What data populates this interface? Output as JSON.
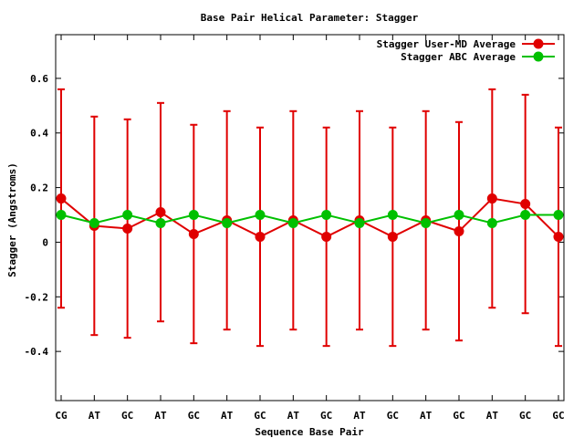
{
  "chart_data": {
    "type": "line",
    "title": "Base Pair Helical Parameter: Stagger",
    "xlabel": "Sequence Base Pair",
    "ylabel": "Stagger (Angstroms)",
    "categories": [
      "CG",
      "AT",
      "GC",
      "AT",
      "GC",
      "AT",
      "GC",
      "AT",
      "GC",
      "AT",
      "GC",
      "AT",
      "GC",
      "AT",
      "GC",
      "GC"
    ],
    "ylim": [
      -0.58,
      0.76
    ],
    "yticks": [
      -0.4,
      -0.2,
      0,
      0.2,
      0.4,
      0.6
    ],
    "ytick_labels": [
      "-0.4",
      "-0.2",
      "0",
      "0.2",
      "0.4",
      "0.6"
    ],
    "grid": false,
    "legend_position": "top-right",
    "series": [
      {
        "name": "Stagger User-MD Average",
        "color": "#e00000",
        "values": [
          0.16,
          0.06,
          0.05,
          0.11,
          0.03,
          0.08,
          0.02,
          0.08,
          0.02,
          0.08,
          0.02,
          0.08,
          0.04,
          0.16,
          0.14,
          0.02
        ],
        "error_low": [
          -0.24,
          -0.34,
          -0.35,
          -0.29,
          -0.37,
          -0.32,
          -0.38,
          -0.32,
          -0.38,
          -0.32,
          -0.38,
          -0.32,
          -0.36,
          -0.24,
          -0.26,
          -0.38
        ],
        "error_high": [
          0.56,
          0.46,
          0.45,
          0.51,
          0.43,
          0.48,
          0.42,
          0.48,
          0.42,
          0.48,
          0.42,
          0.48,
          0.44,
          0.56,
          0.54,
          0.42
        ]
      },
      {
        "name": "Stagger ABC Average",
        "color": "#00c000",
        "values": [
          0.1,
          0.07,
          0.1,
          0.07,
          0.1,
          0.07,
          0.1,
          0.07,
          0.1,
          0.07,
          0.1,
          0.07,
          0.1,
          0.07,
          0.1,
          0.1
        ]
      }
    ]
  }
}
